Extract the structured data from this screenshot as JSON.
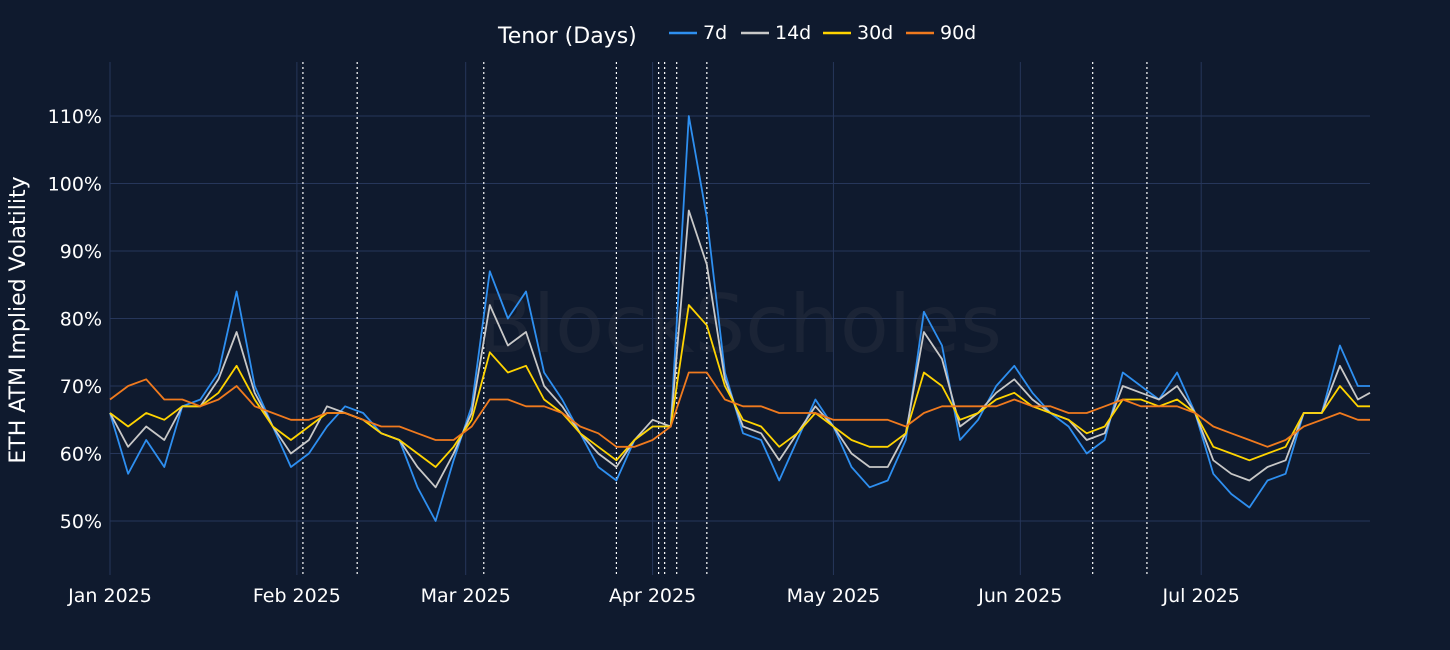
{
  "chart_data": {
    "type": "line",
    "ylabel": "ETH ATM Implied Volatility",
    "legend_title": "Tenor (Days)",
    "legend_position": "top-center",
    "watermark": "BlockScholes",
    "grid": true,
    "ylim": [
      42,
      118
    ],
    "xlim": [
      "2025-01-01",
      "2025-07-29"
    ],
    "y_ticks": [
      50,
      60,
      70,
      80,
      90,
      100,
      110
    ],
    "y_tick_labels": [
      "50%",
      "60%",
      "70%",
      "80%",
      "90%",
      "100%",
      "110%"
    ],
    "x_ticks": [
      "2025-01-01",
      "2025-02-01",
      "2025-03-01",
      "2025-04-01",
      "2025-05-01",
      "2025-06-01",
      "2025-07-01"
    ],
    "x_tick_labels": [
      "Jan 2025",
      "Feb 2025",
      "Mar 2025",
      "Apr 2025",
      "May 2025",
      "Jun 2025",
      "Jul 2025"
    ],
    "event_lines": [
      "2025-02-02",
      "2025-02-11",
      "2025-03-04",
      "2025-03-26",
      "2025-04-02",
      "2025-04-03",
      "2025-04-05",
      "2025-04-10",
      "2025-06-13",
      "2025-06-22"
    ],
    "x": [
      "2025-01-01",
      "2025-01-04",
      "2025-01-07",
      "2025-01-10",
      "2025-01-13",
      "2025-01-16",
      "2025-01-19",
      "2025-01-22",
      "2025-01-25",
      "2025-01-28",
      "2025-01-31",
      "2025-02-03",
      "2025-02-06",
      "2025-02-09",
      "2025-02-12",
      "2025-02-15",
      "2025-02-18",
      "2025-02-21",
      "2025-02-24",
      "2025-02-27",
      "2025-03-02",
      "2025-03-05",
      "2025-03-08",
      "2025-03-11",
      "2025-03-14",
      "2025-03-17",
      "2025-03-20",
      "2025-03-23",
      "2025-03-26",
      "2025-03-29",
      "2025-04-01",
      "2025-04-04",
      "2025-04-07",
      "2025-04-10",
      "2025-04-13",
      "2025-04-16",
      "2025-04-19",
      "2025-04-22",
      "2025-04-25",
      "2025-04-28",
      "2025-05-01",
      "2025-05-04",
      "2025-05-07",
      "2025-05-10",
      "2025-05-13",
      "2025-05-16",
      "2025-05-19",
      "2025-05-22",
      "2025-05-25",
      "2025-05-28",
      "2025-05-31",
      "2025-06-03",
      "2025-06-06",
      "2025-06-09",
      "2025-06-12",
      "2025-06-15",
      "2025-06-18",
      "2025-06-21",
      "2025-06-24",
      "2025-06-27",
      "2025-06-30",
      "2025-07-03",
      "2025-07-06",
      "2025-07-09",
      "2025-07-12",
      "2025-07-15",
      "2025-07-18",
      "2025-07-21",
      "2025-07-24",
      "2025-07-27",
      "2025-07-29"
    ],
    "series": [
      {
        "name": "7d",
        "color": "#2e8ff0",
        "values": [
          66,
          57,
          62,
          58,
          67,
          68,
          72,
          84,
          70,
          64,
          58,
          60,
          64,
          67,
          66,
          63,
          62,
          55,
          50,
          59,
          67,
          87,
          80,
          84,
          72,
          68,
          63,
          58,
          56,
          62,
          64,
          64,
          110,
          95,
          72,
          63,
          62,
          56,
          62,
          68,
          64,
          58,
          55,
          56,
          62,
          81,
          76,
          62,
          65,
          70,
          73,
          69,
          66,
          64,
          60,
          62,
          72,
          70,
          68,
          72,
          66,
          57,
          54,
          52,
          56,
          57,
          66,
          66,
          76,
          70,
          70
        ]
      },
      {
        "name": "14d",
        "color": "#c8c8c8",
        "values": [
          66,
          61,
          64,
          62,
          67,
          67,
          71,
          78,
          69,
          64,
          60,
          62,
          67,
          66,
          65,
          63,
          62,
          58,
          55,
          60,
          66,
          82,
          76,
          78,
          70,
          67,
          63,
          60,
          58,
          62,
          65,
          64,
          96,
          88,
          71,
          64,
          63,
          59,
          63,
          67,
          64,
          60,
          58,
          58,
          63,
          78,
          74,
          64,
          66,
          69,
          71,
          68,
          66,
          65,
          62,
          63,
          70,
          69,
          68,
          70,
          66,
          59,
          57,
          56,
          58,
          59,
          66,
          66,
          73,
          68,
          69
        ]
      },
      {
        "name": "30d",
        "color": "#ffd400",
        "values": [
          66,
          64,
          66,
          65,
          67,
          67,
          69,
          73,
          68,
          64,
          62,
          64,
          66,
          66,
          65,
          63,
          62,
          60,
          58,
          61,
          65,
          75,
          72,
          73,
          68,
          66,
          63,
          61,
          59,
          62,
          64,
          64,
          82,
          79,
          70,
          65,
          64,
          61,
          63,
          66,
          64,
          62,
          61,
          61,
          63,
          72,
          70,
          65,
          66,
          68,
          69,
          67,
          66,
          65,
          63,
          64,
          68,
          68,
          67,
          68,
          66,
          61,
          60,
          59,
          60,
          61,
          66,
          66,
          70,
          67,
          67
        ]
      },
      {
        "name": "90d",
        "color": "#f07a1e",
        "values": [
          68,
          70,
          71,
          68,
          68,
          67,
          68,
          70,
          67,
          66,
          65,
          65,
          66,
          66,
          65,
          64,
          64,
          63,
          62,
          62,
          64,
          68,
          68,
          67,
          67,
          66,
          64,
          63,
          61,
          61,
          62,
          64,
          72,
          72,
          68,
          67,
          67,
          66,
          66,
          66,
          65,
          65,
          65,
          65,
          64,
          66,
          67,
          67,
          67,
          67,
          68,
          67,
          67,
          66,
          66,
          67,
          68,
          67,
          67,
          67,
          66,
          64,
          63,
          62,
          61,
          62,
          64,
          65,
          66,
          65,
          65
        ]
      }
    ]
  }
}
